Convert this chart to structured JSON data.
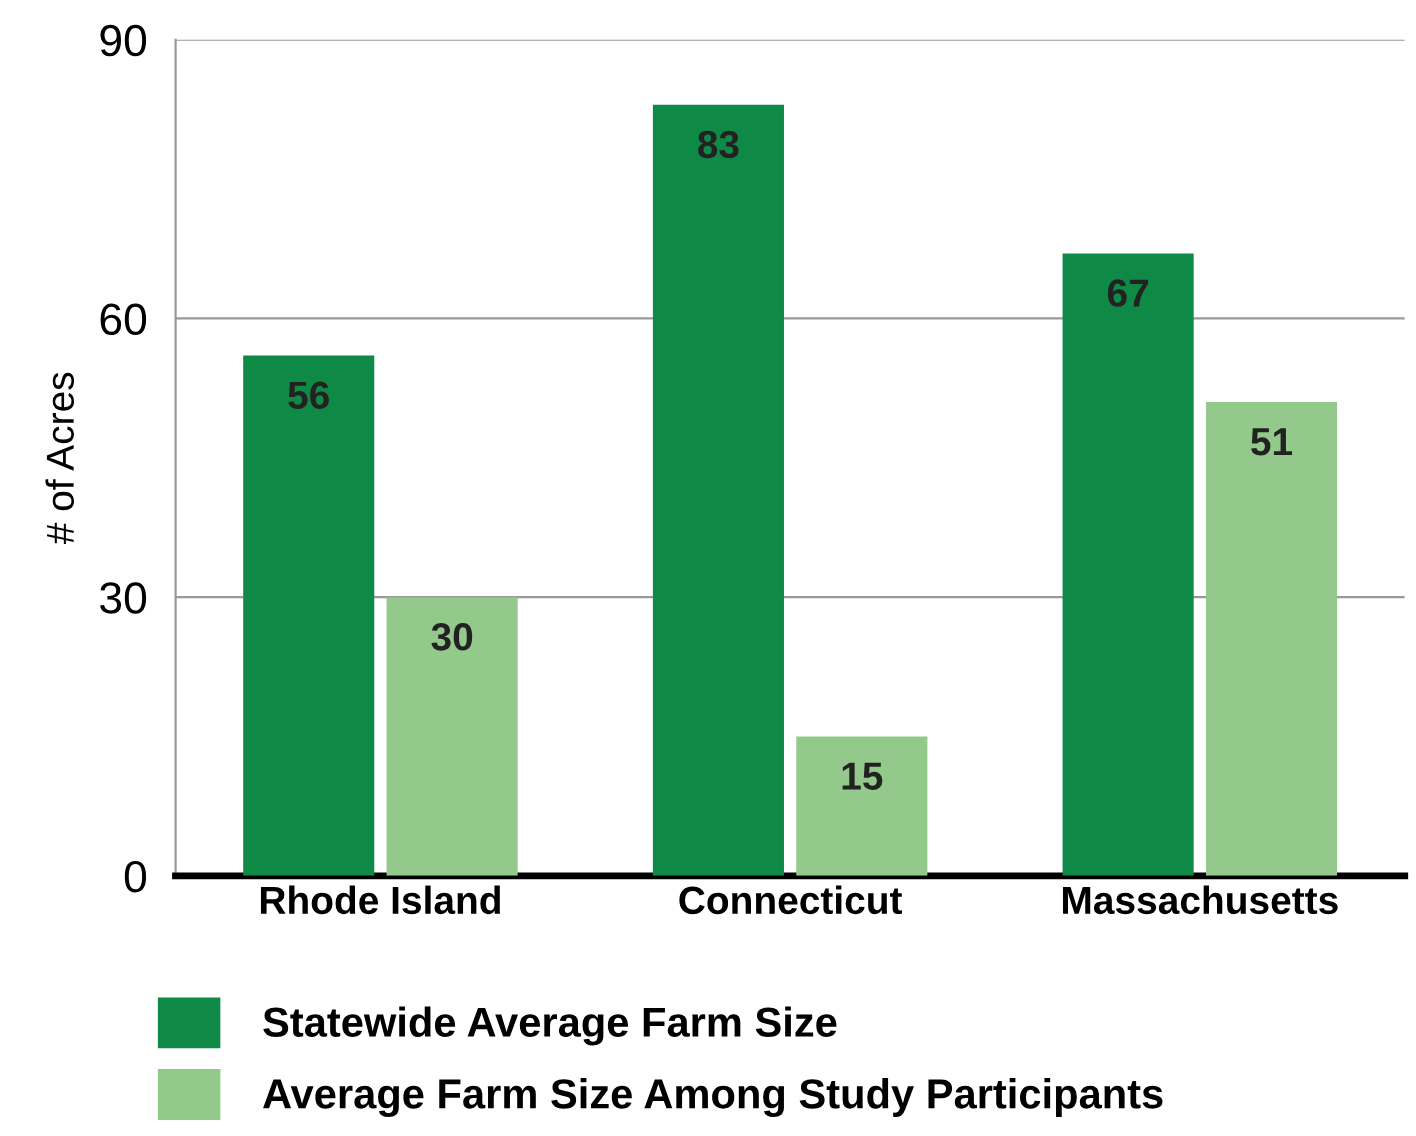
{
  "chart_data": {
    "type": "bar",
    "ylabel": "# of Acres",
    "categories": [
      "Rhode Island",
      "Connecticut",
      "Massachusetts"
    ],
    "series": [
      {
        "name": "Statewide Average Farm Size",
        "color": "#0f8a46",
        "values": [
          56,
          83,
          67
        ]
      },
      {
        "name": "Average Farm Size Among Study Participants",
        "color": "#93c98a",
        "values": [
          30,
          15,
          51
        ]
      }
    ],
    "ylim": [
      0,
      90
    ],
    "yticks": [
      0,
      30,
      60,
      90
    ],
    "grid": "y",
    "legend": "bottom",
    "data_labels": true
  }
}
